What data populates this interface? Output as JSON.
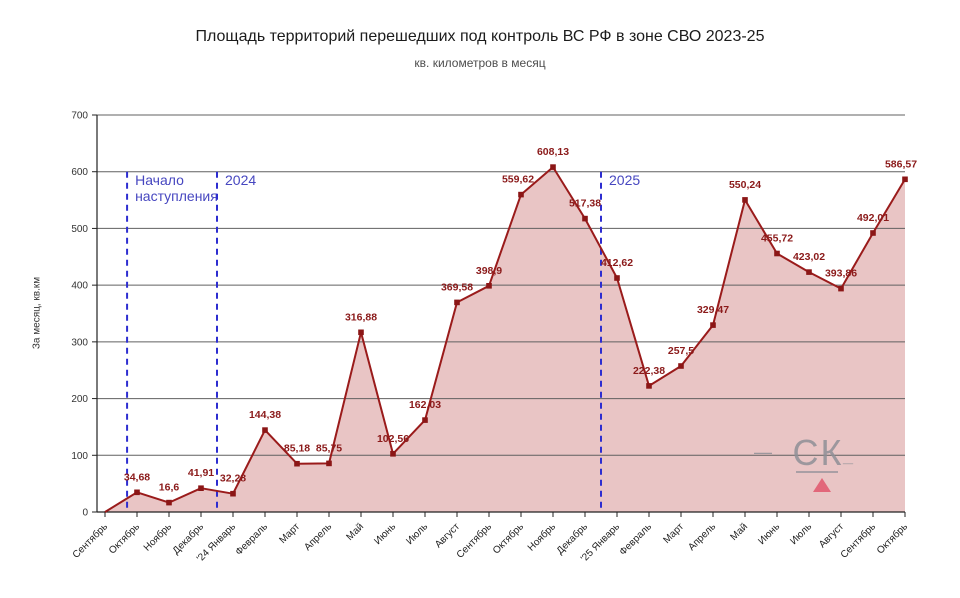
{
  "chart_data": {
    "type": "area",
    "title": "Площадь территорий перешедших под контроль ВС РФ в зоне СВО 2023-25",
    "subtitle": "кв. километров в месяц",
    "ylabel": "За месяц, кв.км",
    "xlabel": "",
    "ylim": [
      0,
      700
    ],
    "ytick_step": 100,
    "grid": true,
    "legend": false,
    "categories": [
      "Сентябрь",
      "Октябрь",
      "Ноябрь",
      "Декабрь",
      "'24 Январь",
      "Февраль",
      "Март",
      "Апрель",
      "Май",
      "Июнь",
      "Июль",
      "Август",
      "Сентябрь",
      "Октябрь",
      "Ноябрь",
      "Декабрь",
      "'25 Январь",
      "Февраль",
      "Март",
      "Апрель",
      "Май",
      "Июнь",
      "Июль",
      "Август",
      "Сентябрь",
      "Октябрь"
    ],
    "values": [
      0,
      34.68,
      16.6,
      41.91,
      32.28,
      144.38,
      85.18,
      85.75,
      316.88,
      102.56,
      162.03,
      369.58,
      398.9,
      559.62,
      608.13,
      517.38,
      412.62,
      222.38,
      257.5,
      329.47,
      550.24,
      455.72,
      423.02,
      393.86,
      492.01,
      586.57
    ],
    "point_labels": [
      "",
      "34,68",
      "16,6",
      "41,91",
      "32,28",
      "144,38",
      "85,18",
      "85,75",
      "316,88",
      "102,56",
      "162,03",
      "369,58",
      "398,9",
      "559,62",
      "608,13",
      "517,38",
      "412,62",
      "222,38",
      "257,5",
      "329,47",
      "550,24",
      "455,72",
      "423,02",
      "393,86",
      "492,01",
      "586,57"
    ],
    "line_color": "#9a1b1b",
    "marker_color": "#8b1616",
    "label_color": "#8b1a1a",
    "fill_color": "#e9c5c5",
    "annotations": {
      "line_color": "#2d2dd0",
      "text_color": "#4747c0",
      "vlines": [
        {
          "x_index": 0.69,
          "top_value": 600,
          "label_lines": [
            "Начало",
            "наступления"
          ]
        },
        {
          "x_index": 3.5,
          "top_value": 600,
          "label_lines": [
            "2024"
          ]
        },
        {
          "x_index": 15.5,
          "top_value": 600,
          "label_lines": [
            "2025"
          ]
        }
      ]
    },
    "watermark": {
      "left_dash": "—",
      "text": "СК",
      "right_dash": "_",
      "color": "#8f8f97",
      "triangle_color": "#e2677a"
    }
  }
}
